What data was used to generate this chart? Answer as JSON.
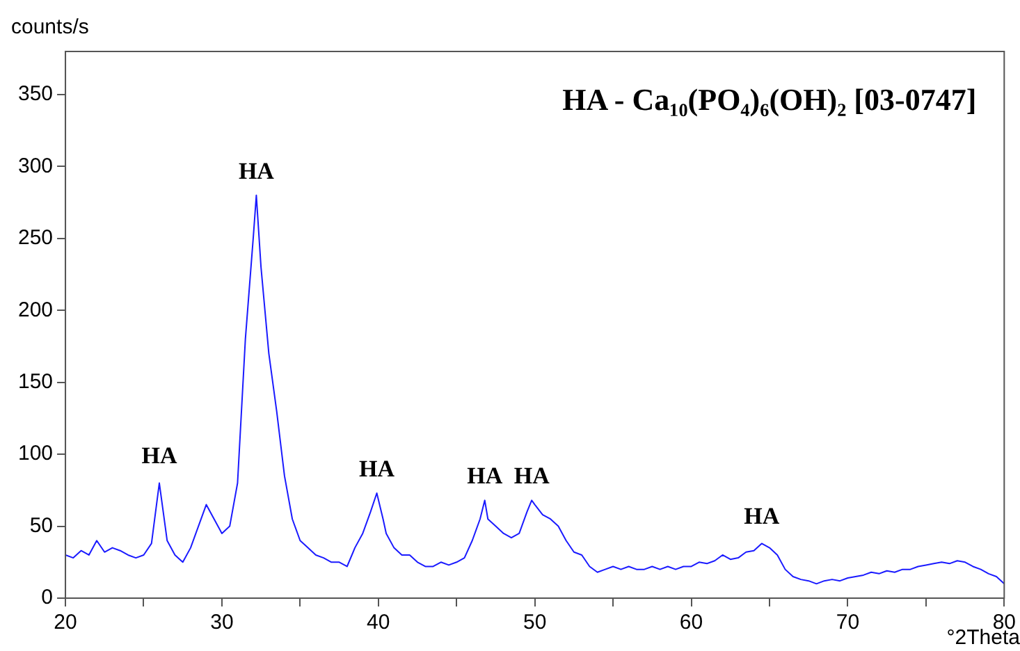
{
  "chart_data": {
    "type": "line",
    "ylabel": "counts/s",
    "xlabel": "°2Theta",
    "annotations": [
      "HA - Ca₁₀(PO₄)₆(OH)₂ [03-0747]",
      {
        "text": "HA",
        "x": 26,
        "y": 82
      },
      {
        "text": "HA",
        "x": 32.2,
        "y": 280
      },
      {
        "text": "HA",
        "x": 39.9,
        "y": 73
      },
      {
        "text": "HA",
        "x": 46.8,
        "y": 68
      },
      {
        "text": "HA",
        "x": 49.8,
        "y": 68
      },
      {
        "text": "HA",
        "x": 64.5,
        "y": 40
      }
    ],
    "xlim": [
      20,
      80
    ],
    "ylim": [
      0,
      380
    ],
    "xticks": [
      20,
      {
        "value": 25,
        "label": null
      },
      30,
      {
        "value": 35,
        "label": null
      },
      40,
      {
        "value": 45,
        "label": null
      },
      50,
      {
        "value": 55,
        "label": null
      },
      60,
      {
        "value": 65,
        "label": null
      },
      70,
      {
        "value": 75,
        "label": null
      },
      80
    ],
    "yticks": [
      0,
      50,
      100,
      150,
      200,
      250,
      300,
      350
    ],
    "grid": false,
    "legend": false,
    "marker": "none",
    "line_style": "solid",
    "series": [
      {
        "color": "#1a1aff",
        "x": [
          20,
          20.5,
          21,
          21.5,
          22,
          22.5,
          23,
          23.5,
          24,
          24.5,
          25,
          25.5,
          26,
          26.5,
          27,
          27.5,
          28,
          28.5,
          29,
          29.5,
          30,
          30.5,
          31,
          31.5,
          32,
          32.2,
          32.5,
          33,
          33.5,
          34,
          34.5,
          35,
          35.5,
          36,
          36.5,
          37,
          37.5,
          38,
          38.5,
          39,
          39.5,
          39.9,
          40.3,
          40.5,
          41,
          41.5,
          42,
          42.5,
          43,
          43.5,
          44,
          44.5,
          45,
          45.5,
          46,
          46.5,
          46.8,
          47,
          47.5,
          48,
          48.5,
          49,
          49.5,
          49.8,
          50,
          50.5,
          51,
          51.5,
          52,
          52.5,
          53,
          53.5,
          54,
          54.5,
          55,
          55.5,
          56,
          56.5,
          57,
          57.5,
          58,
          58.5,
          59,
          59.5,
          60,
          60.5,
          61,
          61.5,
          62,
          62.5,
          63,
          63.5,
          64,
          64.5,
          65,
          65.5,
          66,
          66.5,
          67,
          67.5,
          68,
          68.5,
          69,
          69.5,
          70,
          70.5,
          71,
          71.5,
          72,
          72.5,
          73,
          73.5,
          74,
          74.5,
          75,
          75.5,
          76,
          76.5,
          77,
          77.5,
          78,
          78.5,
          79,
          79.5,
          80
        ],
        "values": [
          30,
          28,
          33,
          30,
          40,
          32,
          35,
          33,
          30,
          28,
          30,
          38,
          80,
          40,
          30,
          25,
          35,
          50,
          65,
          55,
          45,
          50,
          80,
          180,
          250,
          280,
          230,
          170,
          130,
          85,
          55,
          40,
          35,
          30,
          28,
          25,
          25,
          22,
          35,
          45,
          60,
          73,
          55,
          45,
          35,
          30,
          30,
          25,
          22,
          22,
          25,
          23,
          25,
          28,
          40,
          55,
          68,
          55,
          50,
          45,
          42,
          45,
          60,
          68,
          65,
          58,
          55,
          50,
          40,
          32,
          30,
          22,
          18,
          20,
          22,
          20,
          22,
          20,
          20,
          22,
          20,
          22,
          20,
          22,
          22,
          25,
          24,
          26,
          30,
          27,
          28,
          32,
          33,
          38,
          35,
          30,
          20,
          15,
          13,
          12,
          10,
          12,
          13,
          12,
          14,
          15,
          16,
          18,
          17,
          19,
          18,
          20,
          20,
          22,
          23,
          24,
          25,
          24,
          26,
          25,
          22,
          20,
          17,
          15,
          10
        ]
      }
    ]
  }
}
